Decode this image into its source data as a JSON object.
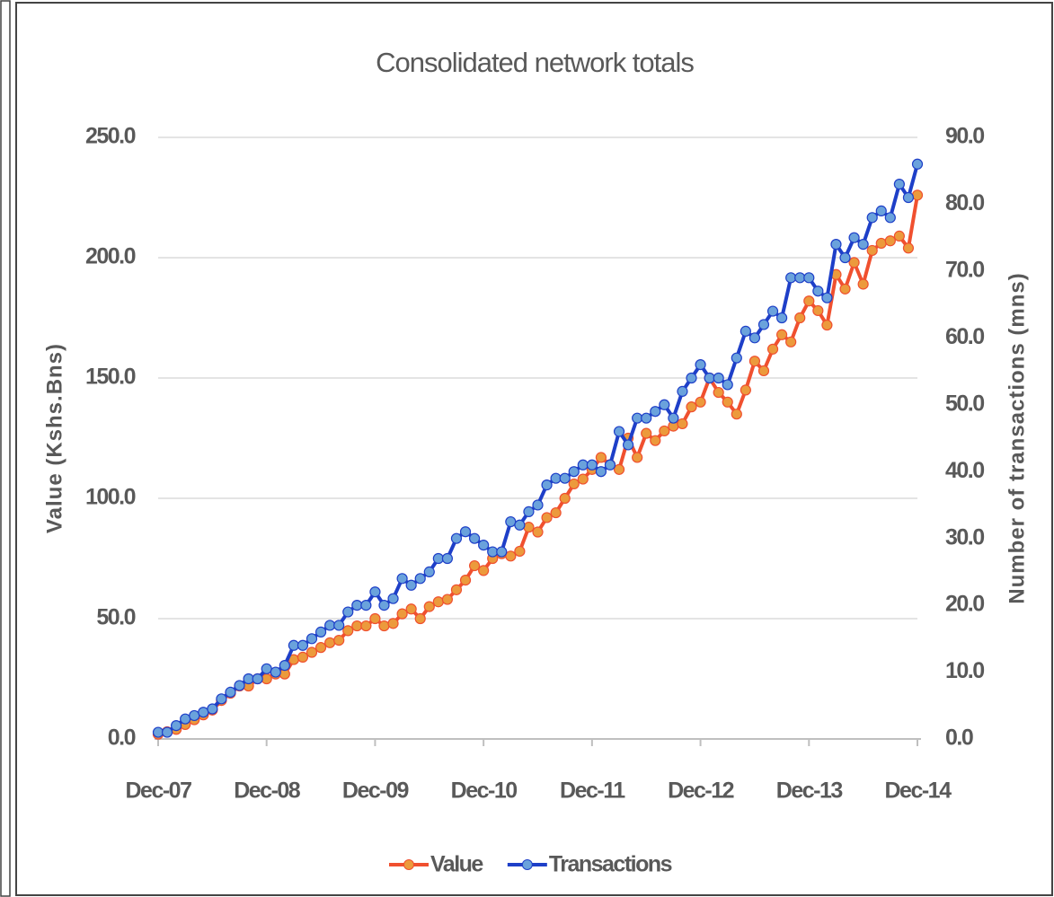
{
  "chart_data": {
    "type": "line",
    "title": "Consolidated network totals",
    "y_label": "Value (Kshs.Bns)",
    "y2_label": "Number of transactions (mns)",
    "categories": [
      "Dec-07",
      null,
      null,
      null,
      null,
      null,
      null,
      null,
      null,
      null,
      null,
      null,
      "Dec-08",
      null,
      null,
      null,
      null,
      null,
      null,
      null,
      null,
      null,
      null,
      null,
      "Dec-09",
      null,
      null,
      null,
      null,
      null,
      null,
      null,
      null,
      null,
      null,
      null,
      "Dec-10",
      null,
      null,
      null,
      null,
      null,
      null,
      null,
      null,
      null,
      null,
      null,
      "Dec-11",
      null,
      null,
      null,
      null,
      null,
      null,
      null,
      null,
      null,
      null,
      null,
      "Dec-12",
      null,
      null,
      null,
      null,
      null,
      null,
      null,
      null,
      null,
      null,
      null,
      "Dec-13",
      null,
      null,
      null,
      null,
      null,
      null,
      null,
      null,
      null,
      null,
      null,
      "Dec-14"
    ],
    "series": [
      {
        "name": "Value",
        "color": "#f0502f",
        "marker_color": "#ec9a3c",
        "values": [
          2,
          3,
          4,
          6,
          8,
          10,
          12,
          16,
          19,
          22,
          22,
          25,
          25,
          27,
          27,
          33,
          34,
          36,
          38,
          40,
          41,
          45,
          47,
          47,
          50,
          47,
          48,
          52,
          54,
          50,
          55,
          57,
          58,
          62,
          66,
          72,
          70,
          75,
          77,
          76,
          78,
          88,
          86,
          92,
          94,
          100,
          106,
          108,
          112,
          117,
          114,
          112,
          125,
          117,
          127,
          124,
          128,
          130,
          131,
          138,
          140,
          150,
          144,
          140,
          135,
          145,
          157,
          153,
          162,
          168,
          165,
          175,
          182,
          178,
          172,
          193,
          187,
          198,
          189,
          203,
          206,
          207,
          209,
          204,
          226
        ]
      },
      {
        "name": "Transactions",
        "color": "#1e3fc8",
        "marker_color": "#6aa2dc",
        "axis": "y2",
        "values": [
          1,
          1,
          2,
          3,
          3.5,
          4,
          4.5,
          6,
          7,
          8,
          9,
          9,
          10.5,
          10,
          11,
          14,
          14,
          15,
          16,
          17,
          17,
          19,
          20,
          20,
          22,
          20,
          21,
          24,
          23,
          24,
          25,
          27,
          27,
          30,
          31,
          30,
          29,
          28,
          28,
          32.5,
          32,
          34,
          35,
          38,
          39,
          39,
          40,
          41,
          41,
          40,
          41,
          46,
          44,
          48,
          48,
          49,
          50,
          48,
          52,
          54,
          56,
          54,
          54,
          53,
          57,
          61,
          60,
          62,
          64,
          63,
          69,
          69,
          69,
          67,
          66,
          74,
          72,
          75,
          74,
          78,
          79,
          78,
          83,
          81,
          86
        ]
      }
    ],
    "ylim": [
      0,
      250
    ],
    "yticks": [
      {
        "value": 0,
        "label": "0.0"
      },
      {
        "value": 50,
        "label": "50.0"
      },
      {
        "value": 100,
        "label": "100.0"
      },
      {
        "value": 150,
        "label": "150.0"
      },
      {
        "value": 200,
        "label": "200.0"
      },
      {
        "value": 250,
        "label": "250.0"
      }
    ],
    "y2lim": [
      0,
      90
    ],
    "y2ticks": [
      {
        "value": 0,
        "label": "0.0"
      },
      {
        "value": 10,
        "label": "10.0"
      },
      {
        "value": 20,
        "label": "20.0"
      },
      {
        "value": 30,
        "label": "30.0"
      },
      {
        "value": 40,
        "label": "40.0"
      },
      {
        "value": 50,
        "label": "50.0"
      },
      {
        "value": 60,
        "label": "60.0"
      },
      {
        "value": 70,
        "label": "70.0"
      },
      {
        "value": 80,
        "label": "80.0"
      },
      {
        "value": 90,
        "label": "90.0"
      }
    ],
    "grid": true,
    "legend": "bottom"
  }
}
